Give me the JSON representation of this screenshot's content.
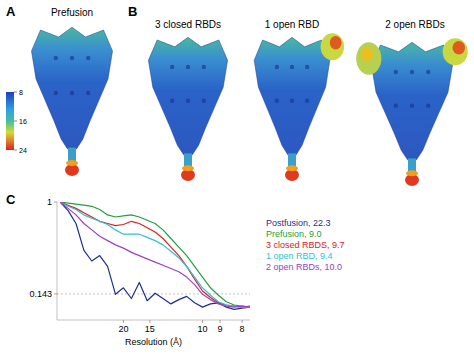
{
  "figure": {
    "panels": [
      {
        "label": "A",
        "titles": [
          "Prefusion"
        ]
      },
      {
        "label": "B",
        "titles": [
          "3 closed RBDs",
          "1 open RBD",
          "2 open RBDs"
        ]
      },
      {
        "label": "C"
      }
    ],
    "colorbar": {
      "lim": [
        8,
        24
      ],
      "ticks": [
        8,
        16,
        24
      ]
    }
  },
  "chart_data": {
    "type": "line",
    "x_label": "Resolution (Å)",
    "x": [
      0.01,
      0.015,
      0.02,
      0.025,
      0.03,
      0.035,
      0.04,
      0.045,
      0.05,
      0.055,
      0.06,
      0.065,
      0.07,
      0.075,
      0.08,
      0.085,
      0.09,
      0.095,
      0.1,
      0.105,
      0.11,
      0.115,
      0.12,
      0.125,
      0.13
    ],
    "xlim": [
      0.008,
      0.13
    ],
    "xticks": [
      {
        "value": 0.05,
        "label": "20"
      },
      {
        "value": 0.0667,
        "label": "15"
      },
      {
        "value": 0.1,
        "label": "10"
      },
      {
        "value": 0.1111,
        "label": "9"
      },
      {
        "value": 0.125,
        "label": "8"
      }
    ],
    "ylim": [
      -0.1,
      1
    ],
    "yticks": [
      0.143,
      1
    ],
    "threshold": 0.143,
    "legend": "right",
    "series": [
      {
        "name": "Postfusion, 22.3",
        "color": "#1f2f8f",
        "values": [
          1,
          0.92,
          0.8,
          0.55,
          0.45,
          0.5,
          0.4,
          0.14,
          0.2,
          0.1,
          0.25,
          0.08,
          0.15,
          0.1,
          0.05,
          0.09,
          0.12,
          0.06,
          0.02,
          0.05,
          0.06,
          0.02,
          0.0,
          0.01,
          0.02
        ]
      },
      {
        "name": "Prefusion, 9.0",
        "color": "#22a040",
        "values": [
          1,
          0.99,
          0.98,
          0.97,
          0.96,
          0.93,
          0.88,
          0.86,
          0.87,
          0.88,
          0.86,
          0.83,
          0.8,
          0.74,
          0.66,
          0.58,
          0.5,
          0.4,
          0.3,
          0.2,
          0.13,
          0.07,
          0.04,
          0.03,
          0.02
        ]
      },
      {
        "name": "3 closed RBDS, 9.7",
        "color": "#e02020",
        "values": [
          1,
          0.97,
          0.94,
          0.9,
          0.86,
          0.82,
          0.8,
          0.78,
          0.79,
          0.82,
          0.8,
          0.76,
          0.72,
          0.66,
          0.58,
          0.5,
          0.4,
          0.28,
          0.17,
          0.11,
          0.06,
          0.04,
          0.03,
          0.02,
          0.03
        ]
      },
      {
        "name": "1 open RBD, 9.4",
        "color": "#30c0d8",
        "values": [
          1,
          0.96,
          0.93,
          0.88,
          0.85,
          0.82,
          0.79,
          0.74,
          0.7,
          0.7,
          0.7,
          0.67,
          0.64,
          0.6,
          0.54,
          0.48,
          0.4,
          0.3,
          0.2,
          0.13,
          0.07,
          0.04,
          0.03,
          0.02,
          0.02
        ]
      },
      {
        "name": "2 open RBDs, 10.0",
        "color": "#a040c0",
        "values": [
          1,
          0.94,
          0.88,
          0.8,
          0.74,
          0.68,
          0.64,
          0.6,
          0.57,
          0.53,
          0.5,
          0.47,
          0.44,
          0.41,
          0.38,
          0.35,
          0.3,
          0.23,
          0.14,
          0.09,
          0.05,
          0.03,
          0.02,
          0.03,
          0.02
        ]
      }
    ]
  }
}
